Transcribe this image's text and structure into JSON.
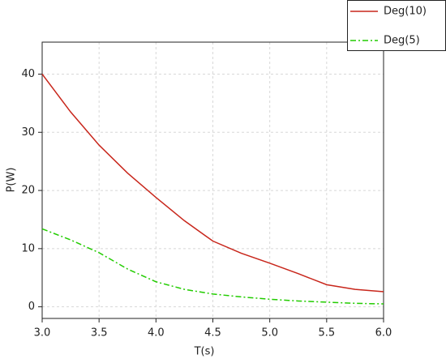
{
  "chart_data": {
    "type": "line",
    "x_label": "T(s)",
    "y_label": "P(W)",
    "x": [
      3.0,
      3.25,
      3.5,
      3.75,
      4.0,
      4.25,
      4.5,
      4.75,
      5.0,
      5.25,
      5.5,
      5.75,
      6.0
    ],
    "series": [
      {
        "name": "Deg(10)",
        "color": "#c8261b",
        "dash": "solid",
        "values": [
          40,
          33.5,
          27.8,
          23,
          18.8,
          14.8,
          11.3,
          9.2,
          7.5,
          5.7,
          3.8,
          3.0,
          2.6
        ]
      },
      {
        "name": "Deg(5)",
        "color": "#22cc00",
        "dash": "dashdot",
        "values": [
          13.4,
          11.5,
          9.3,
          6.5,
          4.3,
          3.0,
          2.2,
          1.7,
          1.3,
          1.0,
          0.8,
          0.6,
          0.5
        ]
      }
    ],
    "xlim": [
      3.0,
      6.0
    ],
    "ylim": [
      -2,
      45.5
    ],
    "xticks": [
      {
        "value": 3,
        "label": "3.0"
      },
      3.5,
      {
        "value": 4,
        "label": "4.0"
      },
      4.5,
      {
        "value": 5,
        "label": "5.0"
      },
      5.5,
      {
        "value": 6,
        "label": "6.0"
      }
    ],
    "yticks": [
      0,
      10,
      20,
      30,
      40
    ],
    "grid": true,
    "legend": "top-right"
  }
}
